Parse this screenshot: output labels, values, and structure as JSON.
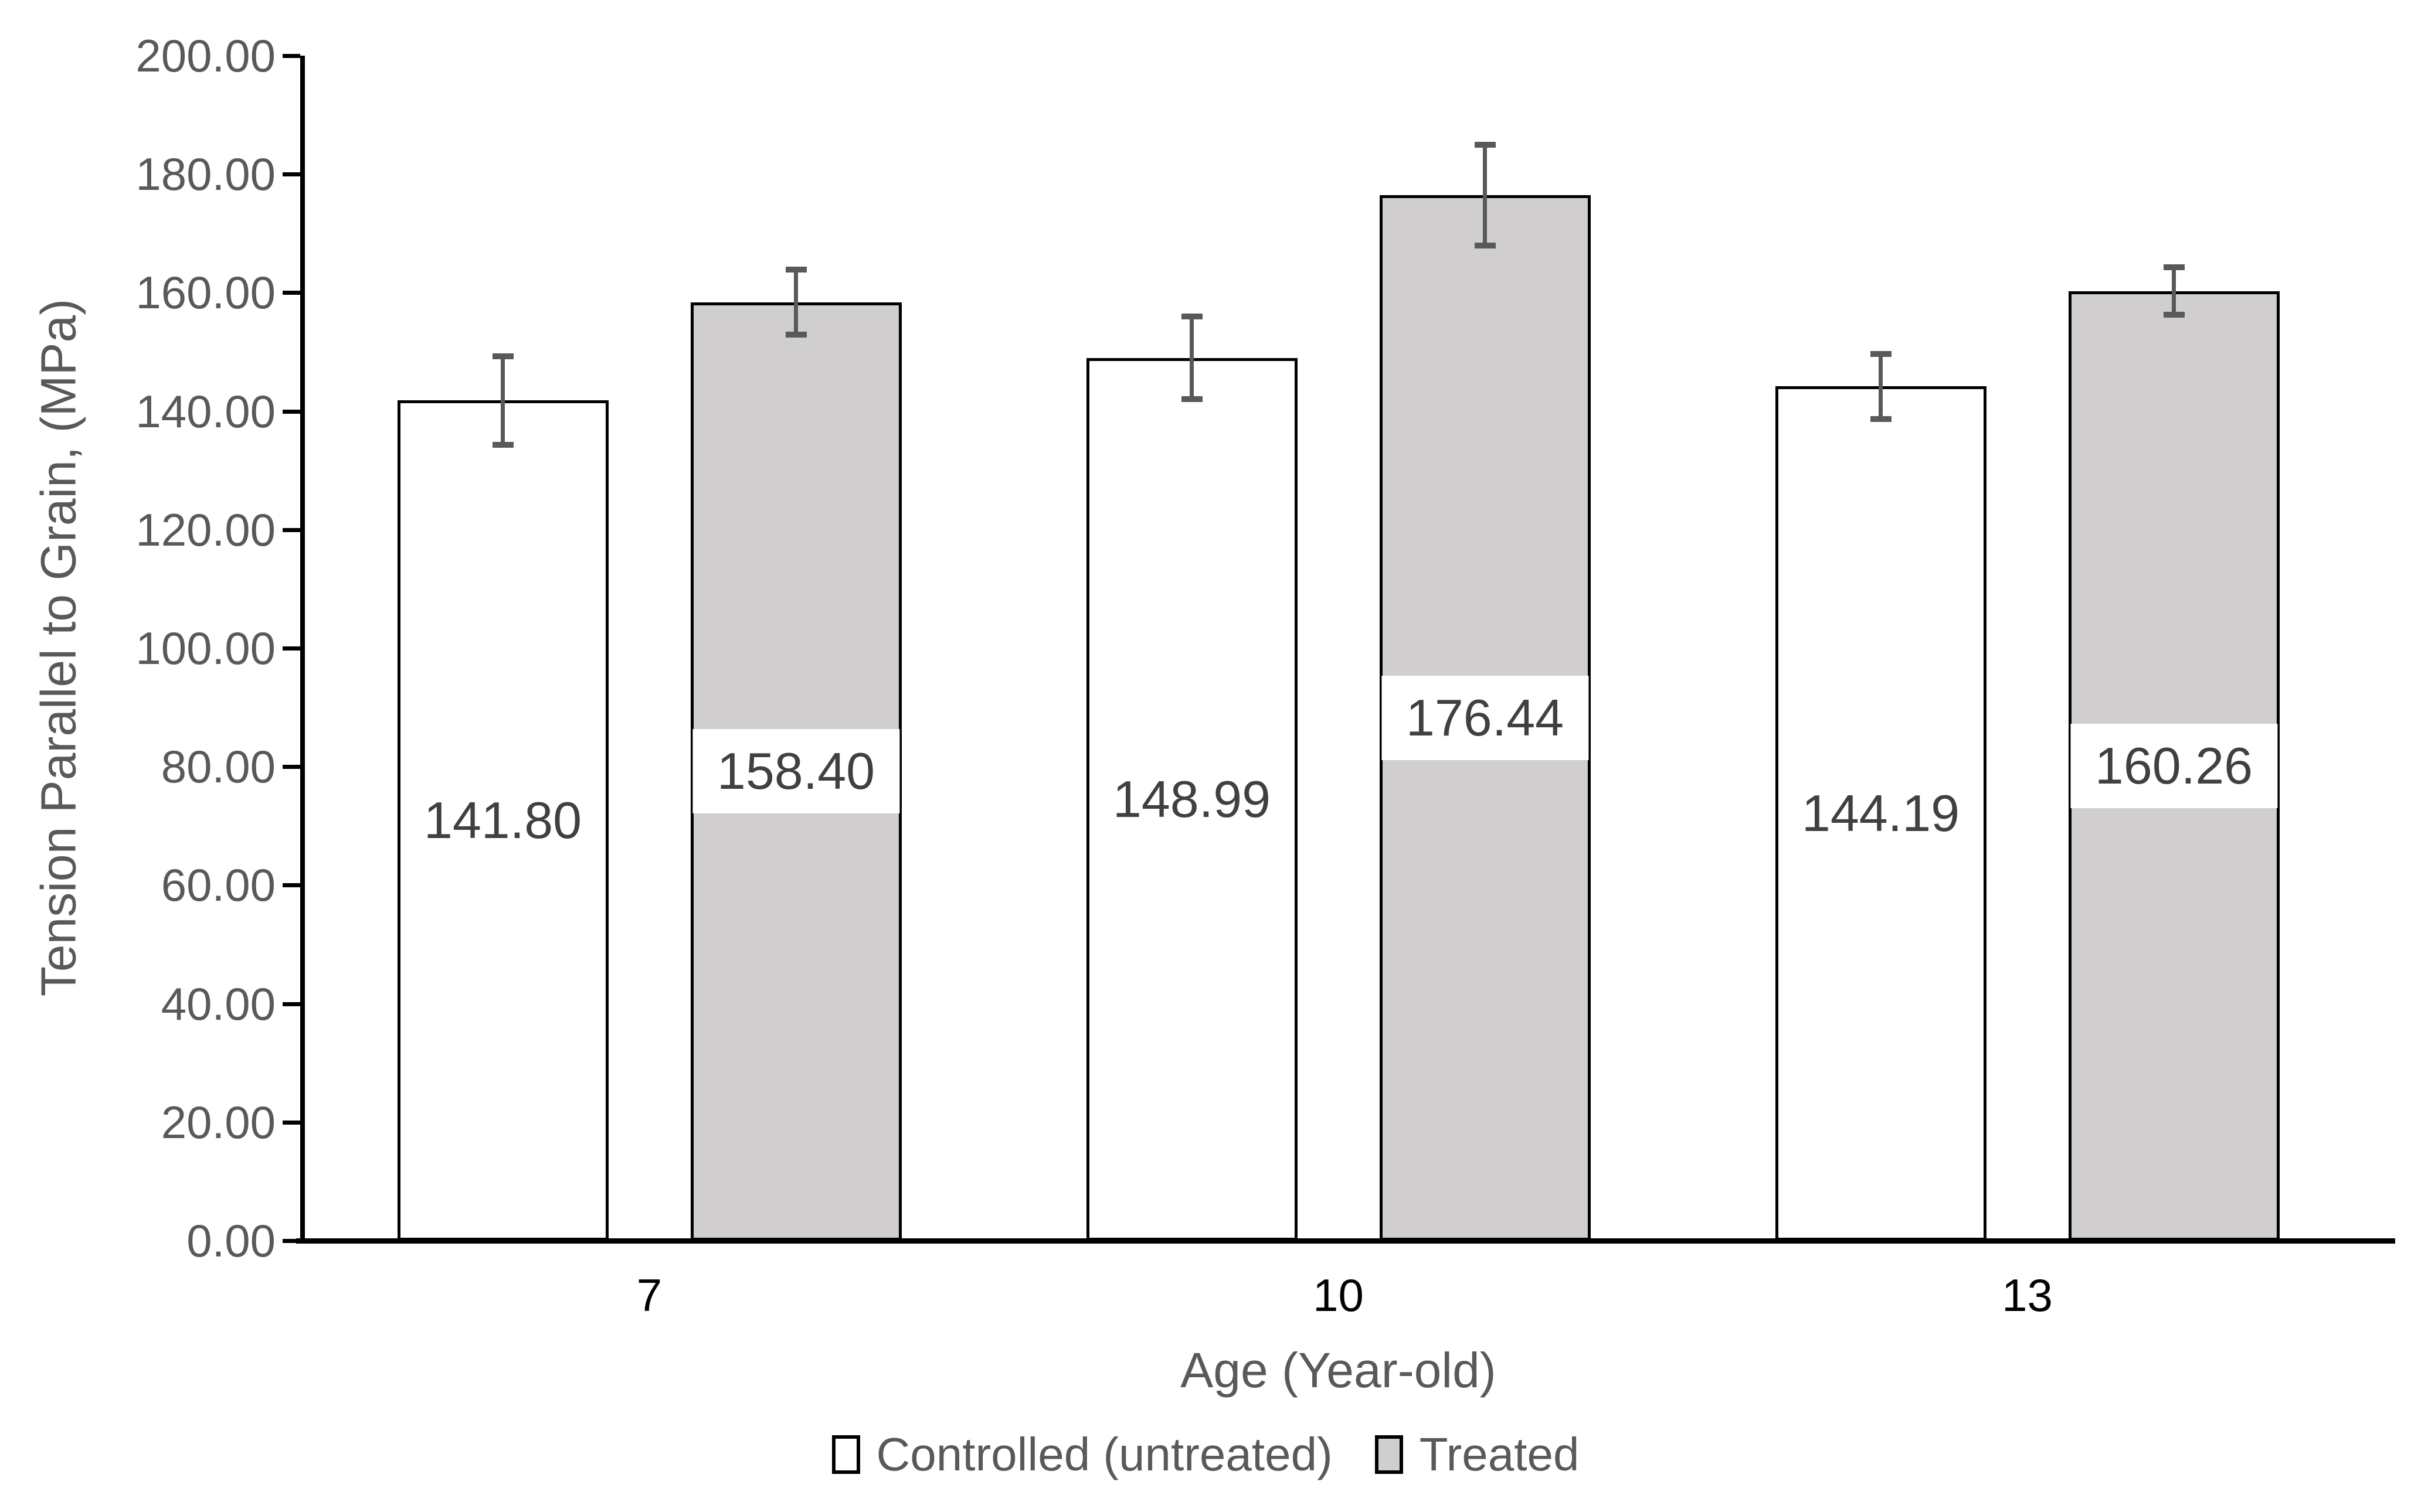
{
  "chart_data": {
    "type": "bar",
    "categories": [
      "7",
      "10",
      "13"
    ],
    "series": [
      {
        "name": "Controlled (untreated)",
        "fill": "#ffffff",
        "values": [
          141.8,
          148.99,
          144.19
        ],
        "labels": [
          "141.80",
          "148.99",
          "144.19"
        ],
        "errors": [
          7.5,
          7.0,
          5.5
        ]
      },
      {
        "name": "Treated",
        "fill": "#d0cece",
        "values": [
          158.4,
          176.44,
          160.26
        ],
        "labels": [
          "158.40",
          "176.44",
          "160.26"
        ],
        "errors": [
          5.5,
          8.5,
          4.0
        ]
      }
    ],
    "xlabel": "Age (Year-old)",
    "ylabel": "Tension Parallel to Grain, (MPa)",
    "ylim": [
      0,
      200
    ],
    "ytick_step": 20,
    "ytick_labels": [
      "0.00",
      "20.00",
      "40.00",
      "60.00",
      "80.00",
      "100.00",
      "120.00",
      "140.00",
      "160.00",
      "180.00",
      "200.00"
    ],
    "grid": "off",
    "legend_position": "bottom",
    "error_bars": true,
    "data_label_position": "center"
  },
  "colors": {
    "axis_line": "#000000",
    "tick_label": "#595959",
    "axis_title": "#595959",
    "category_label": "#000000",
    "data_label": "#404040",
    "error_bar": "#595959",
    "bar_border": "#000000",
    "treated_label_background": "#ffffff"
  }
}
